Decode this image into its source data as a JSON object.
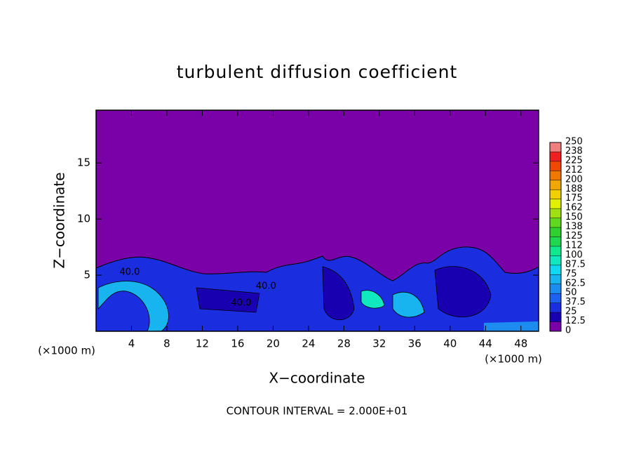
{
  "chart_data": {
    "type": "contour",
    "title": "turbulent diffusion coefficient",
    "x_label": "X−coordinate",
    "y_label": "Z−coordinate",
    "x_unit": "(×1000 m)",
    "x_unit_right": "(×1000 m)",
    "footer": "CONTOUR INTERVAL = 2.000E+01",
    "xlim": [
      0,
      50
    ],
    "xticks": [
      4,
      8,
      12,
      16,
      20,
      24,
      28,
      32,
      36,
      40,
      44,
      48
    ],
    "ylim": [
      0,
      19.7
    ],
    "yticks": [
      5,
      10,
      15
    ],
    "levels": [
      0,
      12.5,
      25,
      37.5,
      50,
      62.5,
      75,
      87.5,
      100,
      {
        "value": 112.5,
        "label": "112"
      },
      125,
      {
        "value": 137.5,
        "label": "138"
      },
      150,
      {
        "value": 162.5,
        "label": "162"
      },
      175,
      {
        "value": 187.5,
        "label": "188"
      },
      200,
      {
        "value": 212.5,
        "label": "212"
      },
      225,
      {
        "value": 237.5,
        "label": "238"
      },
      250
    ],
    "level_colors": [
      "#7a00a8",
      "#1800b0",
      "#1a2ee0",
      "#1e60f0",
      "#1d8cf0",
      "#18b4f0",
      "#10d8f0",
      "#10e8c0",
      "#10e890",
      "#20d850",
      "#30d030",
      "#60d820",
      "#a0e010",
      "#e0f000",
      "#f0d000",
      "#f0a800",
      "#f07800",
      "#f04800",
      "#f02020",
      "#f08080"
    ],
    "annotations": [
      {
        "text": "40.0",
        "x": 3.8,
        "y": 5.25
      },
      {
        "text": "40.0",
        "x": 19.2,
        "y": 4.0
      },
      {
        "text": "40.0",
        "x": 16.4,
        "y": 2.5
      }
    ]
  }
}
